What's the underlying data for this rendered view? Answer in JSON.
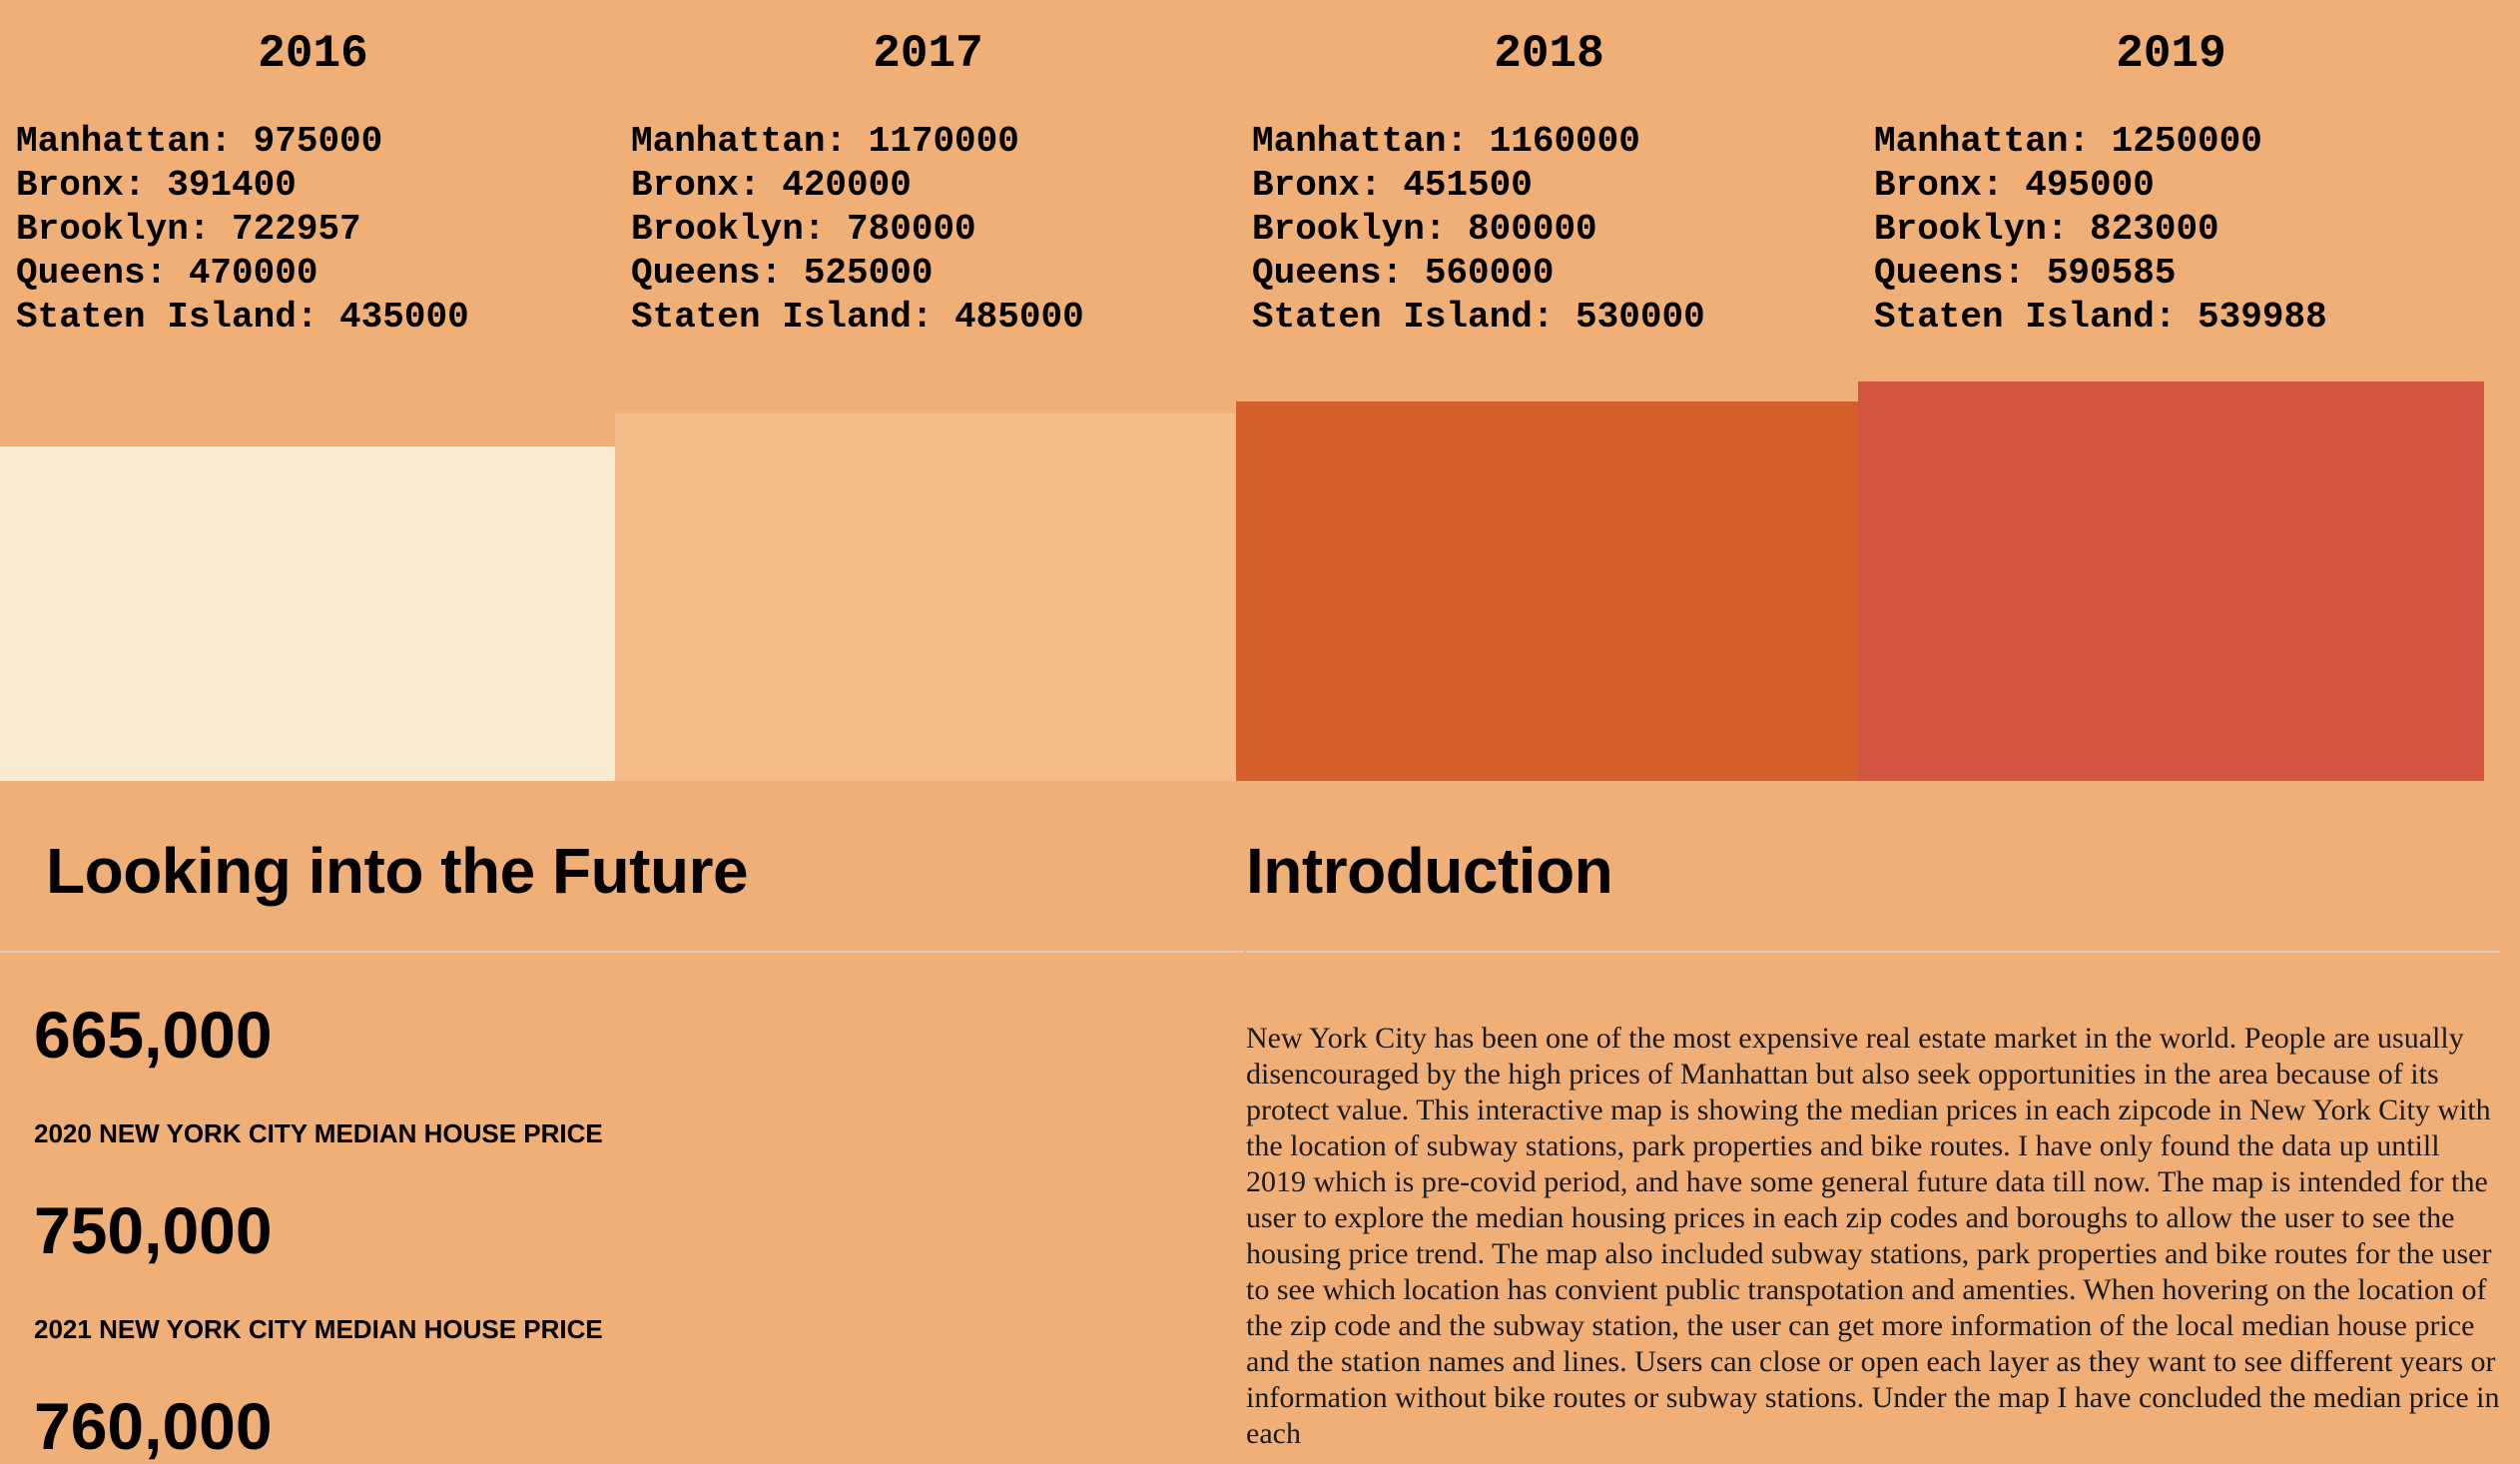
{
  "chart_data": {
    "type": "bar",
    "categories": [
      "2016",
      "2017",
      "2018",
      "2019"
    ],
    "bars": [
      {
        "year": "2016",
        "color": "#fbebd0",
        "stats": [
          "Manhattan: 975000",
          "Bronx: 391400",
          "Brooklyn: 722957",
          "Queens: 470000",
          "Staten Island: 435000"
        ],
        "manhattan": 975000
      },
      {
        "year": "2017",
        "color": "#f4bd8a",
        "stats": [
          "Manhattan: 1170000",
          "Bronx: 420000",
          "Brooklyn: 780000",
          "Queens: 525000",
          "Staten Island: 485000"
        ],
        "manhattan": 1170000
      },
      {
        "year": "2018",
        "color": "#d35f2b",
        "stats": [
          "Manhattan: 1160000",
          "Bronx: 451500",
          "Brooklyn: 800000",
          "Queens: 560000",
          "Staten Island: 530000"
        ],
        "manhattan": 1160000
      },
      {
        "year": "2019",
        "color": "#d15540",
        "stats": [
          "Manhattan: 1250000",
          "Bronx: 495000",
          "Brooklyn: 823000",
          "Queens: 590585",
          "Staten Island: 539988"
        ],
        "manhattan": 1250000
      }
    ]
  },
  "future": {
    "title": "Looking into the Future",
    "items": [
      {
        "value": "665,000",
        "label": "2020 NEW YORK CITY MEDIAN HOUSE PRICE"
      },
      {
        "value": "750,000",
        "label": "2021 NEW YORK CITY MEDIAN HOUSE PRICE"
      },
      {
        "value": "760,000",
        "label": ""
      }
    ]
  },
  "intro": {
    "title": "Introduction",
    "text": "New York City has been one of the most expensive real estate market in the world. People are usually disencouraged by the high prices of Manhattan but also seek opportunities in the area because of its protect value. This interactive map is showing the median prices in each zipcode in New York City with the location of subway stations, park properties and bike routes. I have only found the data up untill 2019 which is pre-covid period, and have some general future data till now. The map is intended for the user to explore the median housing prices in each zip codes and boroughs to allow the user to see the housing price trend. The map also included subway stations, park properties and bike routes for the user to see which location has convient public transpotation and amenties. When hovering on the location of the zip code and the subway station, the user can get more information of the local median house price and the station names and lines. Users can close or open each layer as they want to see different years or information without bike routes or subway stations. Under the map I have concluded the median price in each"
  }
}
